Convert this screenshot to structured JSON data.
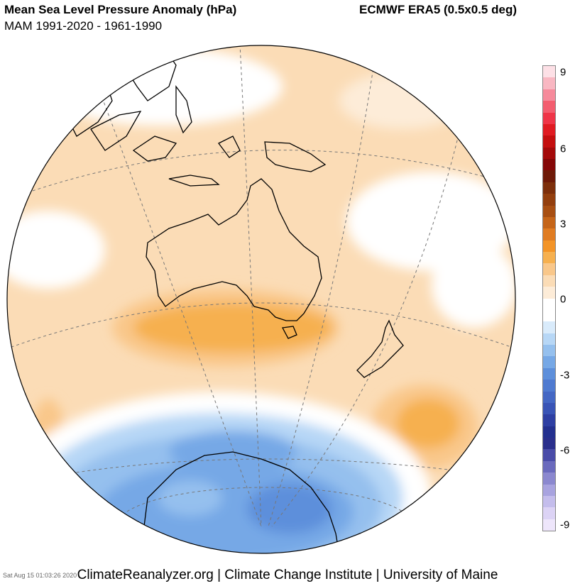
{
  "header": {
    "title": "Mean Sea Level Pressure Anomaly (hPa)",
    "subtitle": "MAM 1991-2020 - 1961-1990",
    "source": "ECMWF ERA5 (0.5x0.5 deg)"
  },
  "colorbar": {
    "ticks": [
      "9",
      "6",
      "3",
      "0",
      "-3",
      "-6",
      "-9"
    ],
    "colors": [
      "#fde0e6",
      "#f9b7c2",
      "#f68a9b",
      "#f35d6f",
      "#ef3548",
      "#e01b22",
      "#c40f0f",
      "#a40a0a",
      "#850707",
      "#6e1a08",
      "#7d2f0b",
      "#933f0e",
      "#a84f12",
      "#c56519",
      "#e07c22",
      "#f39427",
      "#f6b04f",
      "#f9c78a",
      "#fbdcb6",
      "#fdecd8",
      "#ffffff",
      "#ffffff",
      "#d9ebfb",
      "#b7d7f6",
      "#95c0ee",
      "#76a8e6",
      "#5d8fdb",
      "#4f7ad0",
      "#4467c4",
      "#3954b6",
      "#2e3fa3",
      "#23308f",
      "#2a2f8c",
      "#4a4ca8",
      "#6a6abd",
      "#8b88cf",
      "#a8a3df",
      "#c4bdec",
      "#dcd3f5",
      "#eee6fb"
    ]
  },
  "footer": {
    "credit": "ClimateReanalyzer.org | Climate Change Institute | University of Maine",
    "stamp": "Sat Aug 15 01:03:26 2020"
  }
}
